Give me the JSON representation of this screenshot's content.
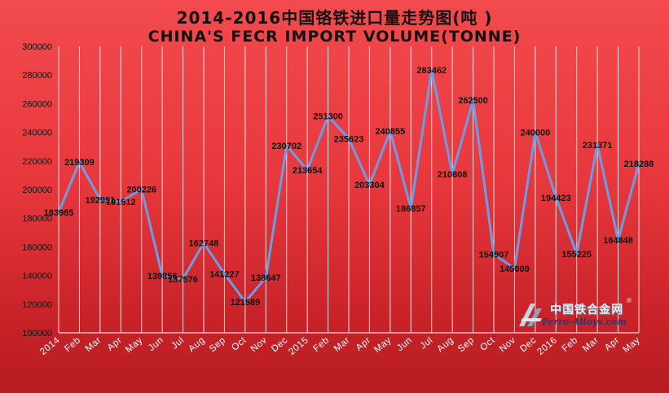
{
  "chart_data": {
    "type": "line",
    "title": "2014-2016中国铬铁进口量走势图(吨 )",
    "subtitle": "CHINA'S FECR IMPORT VOLUME(TONNE)",
    "categories": [
      "2014",
      "Feb",
      "Mar",
      "Apr",
      "May",
      "Jun",
      "Jul",
      "Aug",
      "Sep",
      "Oct",
      "Nov",
      "Dec",
      "2015",
      "Feb",
      "Mar",
      "Apr",
      "May",
      "Jun",
      "Jul",
      "Aug",
      "Sep",
      "Oct",
      "Nov",
      "Dec",
      "2016",
      "Feb",
      "Mar",
      "Apr",
      "May"
    ],
    "series": [
      {
        "values": [
          183985,
          219309,
          192991,
          191512,
          200226,
          139856,
          137576,
          162748,
          141227,
          121589,
          138647,
          230702,
          213654,
          251300,
          235623,
          203304,
          240855,
          186857,
          283462,
          210808,
          262500,
          154907,
          145009,
          240000,
          194423,
          155225,
          231371,
          164848,
          218288
        ],
        "labels": [
          "183985",
          "219309",
          "192991",
          "191512",
          "200226",
          "139856",
          "137576",
          "162748",
          "141227",
          "121589",
          "138647",
          "230702",
          "213654",
          "251300",
          "235623",
          "203304",
          "240855",
          "186857",
          "283462",
          "210808",
          "262500",
          "154907",
          "145009",
          "240000",
          "194423",
          "155225",
          "231371",
          "164848",
          "218288"
        ]
      }
    ],
    "ylim": [
      100000,
      300000
    ],
    "yticks": [
      "100000",
      "120000",
      "140000",
      "160000",
      "180000",
      "200000",
      "220000",
      "240000",
      "260000",
      "280000",
      "300000"
    ],
    "grid": "vertical",
    "line_color": "#6c9ce6",
    "background_color": "#e8383d"
  },
  "watermark": {
    "cn": "中国铁合金网",
    "en": "Ferro-Alloys.com",
    "reg": "®"
  }
}
